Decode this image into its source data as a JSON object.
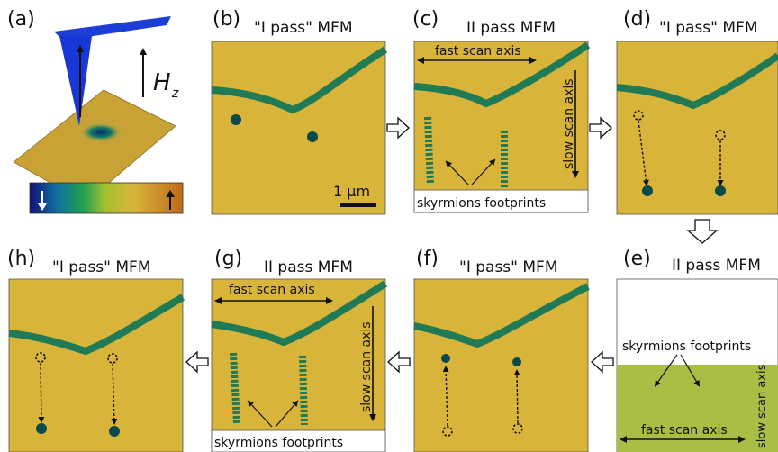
{
  "panels": {
    "a": {
      "letter": "(a)",
      "field_label": "H",
      "field_sub": "z"
    },
    "b": {
      "letter": "(b)",
      "title": "\"I pass\" MFM",
      "scale": "1 µm"
    },
    "c": {
      "letter": "(c)",
      "title": "II pass MFM",
      "fast": "fast scan axis",
      "slow": "slow scan axis",
      "footprints": "skyrmions footprints"
    },
    "d": {
      "letter": "(d)",
      "title": "\"I pass\" MFM"
    },
    "e": {
      "letter": "(e)",
      "title": "II pass MFM",
      "fast": "fast scan axis",
      "slow": "slow scan axis",
      "footprints": "skyrmions footprints"
    },
    "f": {
      "letter": "(f)",
      "title": "\"I pass\" MFM"
    },
    "g": {
      "letter": "(g)",
      "title": "II pass MFM",
      "fast": "fast scan axis",
      "slow": "slow scan axis",
      "footprints": "skyrmions footprints"
    },
    "h": {
      "letter": "(h)",
      "title": "\"I pass\" MFM"
    }
  },
  "colors": {
    "background_yellow": "#d8b43a",
    "domain_green": "#1f7a55",
    "tip_blue": "#1737d6",
    "dark_spot": "#0a4a48"
  }
}
